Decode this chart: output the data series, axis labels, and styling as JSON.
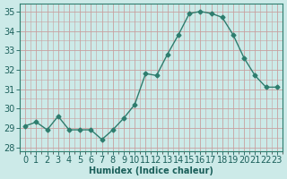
{
  "x": [
    0,
    1,
    2,
    3,
    4,
    5,
    6,
    7,
    8,
    9,
    10,
    11,
    12,
    13,
    14,
    15,
    16,
    17,
    18,
    19,
    20,
    21,
    22,
    23
  ],
  "y": [
    29.1,
    29.3,
    28.9,
    29.6,
    28.9,
    28.9,
    28.9,
    28.4,
    28.9,
    29.5,
    30.2,
    31.8,
    31.7,
    32.8,
    33.8,
    34.9,
    35.0,
    34.9,
    34.7,
    33.8,
    32.6,
    31.7,
    31.1,
    31.1
  ],
  "line_color": "#2e7d6e",
  "marker": "D",
  "marker_size": 2.5,
  "bg_color": "#cceae8",
  "grid_color": "#c8a0a0",
  "xlabel": "Humidex (Indice chaleur)",
  "xlabel_fontsize": 7,
  "tick_fontsize": 7,
  "ylim": [
    27.8,
    35.4
  ],
  "yticks": [
    28,
    29,
    30,
    31,
    32,
    33,
    34,
    35
  ],
  "xlim": [
    -0.5,
    23.5
  ],
  "xtick_labels": [
    "0",
    "1",
    "2",
    "3",
    "4",
    "5",
    "6",
    "7",
    "8",
    "9",
    "10",
    "11",
    "12",
    "13",
    "14",
    "15",
    "16",
    "17",
    "18",
    "19",
    "20",
    "21",
    "22",
    "23"
  ]
}
